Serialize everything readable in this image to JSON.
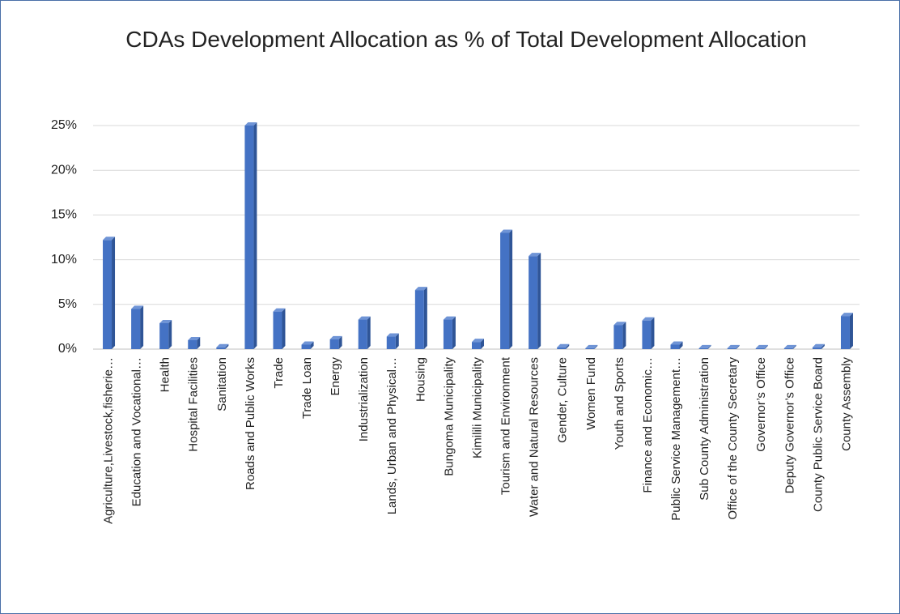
{
  "chart_data": {
    "type": "bar3d",
    "title": "CDAs Development Allocation as % of Total Development Allocation",
    "categories": [
      "Agriculture,Livestock,fisherie…",
      "Education and Vocational…",
      "Health",
      "Hospital Facilities",
      "Sanitation",
      "Roads and Public Works",
      "Trade",
      "Trade Loan",
      "Energy",
      "Industrialization",
      "Lands, Urban and Physical…",
      "Housing",
      "Bungoma Municipality",
      "Kimilili Municipality",
      "Tourism and Environment",
      "Water and Natural Resources",
      "Gender, Culture",
      "Women Fund",
      "Youth and Sports",
      "Finance and Economic…",
      "Public Service Management…",
      "Sub County Administration",
      "Office of the County Secretary",
      "Governor’s Office",
      "Deputy Governor’s Office",
      "County Public Service Board",
      "County Assembly"
    ],
    "values": [
      12.2,
      4.5,
      2.9,
      1.0,
      0.2,
      25.0,
      4.2,
      0.5,
      1.1,
      3.3,
      1.4,
      6.6,
      3.3,
      0.8,
      13.0,
      10.4,
      0.2,
      0.1,
      2.7,
      3.2,
      0.5,
      0.1,
      0.1,
      0.1,
      0.1,
      0.2,
      3.7
    ],
    "color": "#4472c4",
    "ylim": [
      0,
      25
    ],
    "yticks": [
      {
        "value": 0,
        "label": "0%"
      },
      {
        "value": 5,
        "label": "5%"
      },
      {
        "value": 10,
        "label": "10%"
      },
      {
        "value": 15,
        "label": "15%"
      },
      {
        "value": 20,
        "label": "20%"
      },
      {
        "value": 25,
        "label": "25%"
      }
    ],
    "grid": true
  }
}
